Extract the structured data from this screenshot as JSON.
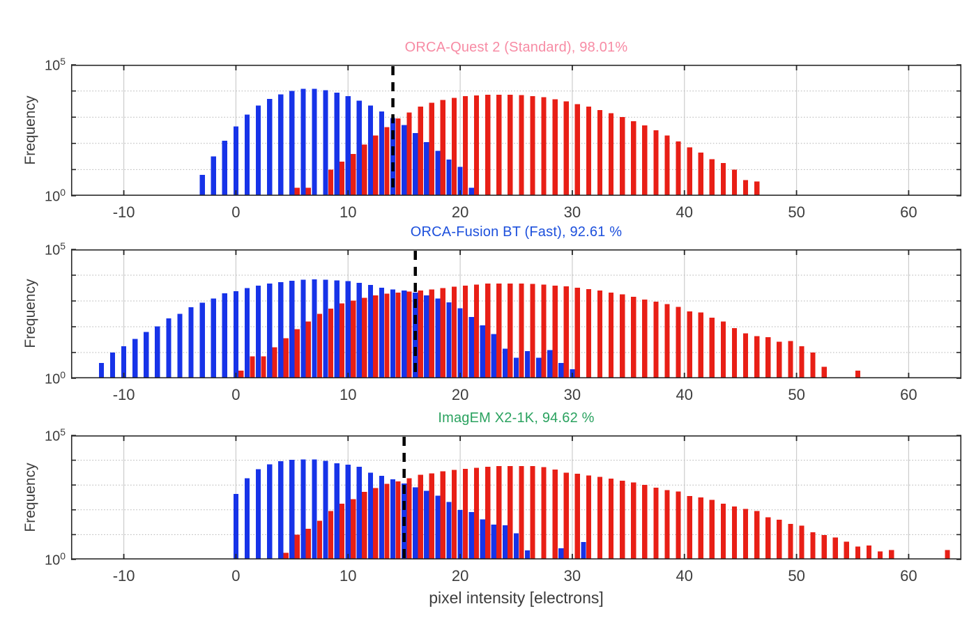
{
  "figure": {
    "xlabel": "pixel intensity [electrons]",
    "background": "#ffffff",
    "axis_color": "#262626",
    "tick_label_color": "#3d3d3d",
    "vgrid_color": "#cccccc",
    "hgrid_color": "#b5b5b5",
    "threshold_color": "#000000",
    "blue_color": "#1733e8",
    "red_color": "#e81f16"
  },
  "chart_data": [
    {
      "type": "bar",
      "title": "ORCA-Quest 2 (Standard), 98.01%",
      "title_color": "#f78ba4",
      "ylabel": "Frequency",
      "xlabel": "",
      "xlim": [
        -14.7,
        64.7
      ],
      "ylim_log10": [
        0,
        5
      ],
      "xticks": [
        -10,
        0,
        10,
        20,
        30,
        40,
        50,
        60
      ],
      "ytick_labels": [
        "10^0",
        "10^5"
      ],
      "grid": "horizontal dotted at each decade, vertical solid at x ticks",
      "threshold_x": 14,
      "series": [
        {
          "name": "blue",
          "color": "#1733e8",
          "x_start": -3,
          "log10_frequency": [
            0.8,
            1.5,
            2.1,
            2.65,
            3.1,
            3.45,
            3.7,
            3.87,
            4.0,
            4.08,
            4.08,
            4.03,
            3.93,
            3.8,
            3.63,
            3.44,
            3.22,
            2.97,
            2.7,
            2.4,
            2.05,
            1.72,
            1.38,
            1.1,
            0.3
          ]
        },
        {
          "name": "red",
          "color": "#e81f16",
          "x_start": 5,
          "log10_frequency": [
            0.3,
            0.3,
            null,
            1.0,
            1.3,
            1.6,
            1.95,
            2.3,
            2.62,
            2.95,
            3.18,
            3.4,
            3.55,
            3.66,
            3.74,
            3.8,
            3.83,
            3.85,
            3.86,
            3.86,
            3.84,
            3.8,
            3.76,
            3.68,
            3.6,
            3.5,
            3.4,
            3.27,
            3.15,
            3.0,
            2.85,
            2.68,
            2.5,
            2.3,
            2.08,
            1.85,
            1.65,
            1.4,
            1.25,
            1.0,
            0.6,
            0.55
          ]
        }
      ]
    },
    {
      "type": "bar",
      "title": "ORCA-Fusion BT (Fast), 92.61 %",
      "title_color": "#1d50dc",
      "ylabel": "Frequency",
      "xlabel": "",
      "xlim": [
        -14.7,
        64.7
      ],
      "ylim_log10": [
        0,
        5
      ],
      "xticks": [
        -10,
        0,
        10,
        20,
        30,
        40,
        50,
        60
      ],
      "ytick_labels": [
        "10^0",
        "10^5"
      ],
      "grid": "horizontal dotted at each decade, vertical solid at x ticks",
      "threshold_x": 16,
      "series": [
        {
          "name": "blue",
          "color": "#1733e8",
          "x_start": -12,
          "log10_frequency": [
            0.6,
            1.0,
            1.25,
            1.53,
            1.8,
            2.02,
            2.33,
            2.5,
            2.76,
            2.93,
            3.1,
            3.3,
            3.38,
            3.5,
            3.6,
            3.68,
            3.73,
            3.79,
            3.83,
            3.84,
            3.83,
            3.8,
            3.77,
            3.7,
            3.62,
            3.52,
            3.45,
            3.4,
            3.33,
            3.22,
            3.1,
            2.95,
            2.72,
            2.38,
            2.05,
            1.72,
            1.15,
            0.8,
            1.05,
            0.8,
            1.1,
            0.6,
            0.35
          ]
        },
        {
          "name": "red",
          "color": "#e81f16",
          "x_start": 0,
          "log10_frequency": [
            0.3,
            0.85,
            0.85,
            1.2,
            1.55,
            1.9,
            2.2,
            2.5,
            2.7,
            2.9,
            3.02,
            3.12,
            3.22,
            3.28,
            3.32,
            3.36,
            3.4,
            3.45,
            3.5,
            3.55,
            3.6,
            3.64,
            3.67,
            3.68,
            3.68,
            3.68,
            3.66,
            3.64,
            3.6,
            3.57,
            3.52,
            3.46,
            3.4,
            3.33,
            3.26,
            3.16,
            3.06,
            2.97,
            2.88,
            2.77,
            2.6,
            2.55,
            2.35,
            2.2,
            1.95,
            1.75,
            1.64,
            1.6,
            1.42,
            1.45,
            1.25,
            1.0,
            0.45,
            null,
            null,
            0.3
          ]
        }
      ]
    },
    {
      "type": "bar",
      "title": "ImagEM X2-1K, 94.62 %",
      "title_color": "#2aa25f",
      "ylabel": "Frequency",
      "xlabel": "pixel intensity [electrons]",
      "xlim": [
        -14.7,
        64.7
      ],
      "ylim_log10": [
        0,
        5
      ],
      "xticks": [
        -10,
        0,
        10,
        20,
        30,
        40,
        50,
        60
      ],
      "ytick_labels": [
        "10^0",
        "10^5"
      ],
      "grid": "horizontal dotted at each decade, vertical solid at x ticks",
      "threshold_x": 15,
      "series": [
        {
          "name": "blue",
          "color": "#1733e8",
          "x_start": 0,
          "log10_frequency": [
            2.64,
            3.27,
            3.64,
            3.84,
            3.96,
            4.02,
            4.03,
            4.03,
            3.97,
            3.88,
            3.82,
            3.73,
            3.5,
            3.37,
            3.23,
            3.06,
            2.91,
            2.76,
            2.57,
            2.32,
            2.0,
            1.91,
            1.61,
            1.41,
            1.38,
            1.06,
            0.36,
            null,
            null,
            0.45,
            null,
            0.7
          ]
        },
        {
          "name": "red",
          "color": "#e81f16",
          "x_start": 4,
          "log10_frequency": [
            0.27,
            1.0,
            1.24,
            1.56,
            1.95,
            2.25,
            2.43,
            2.73,
            2.88,
            3.05,
            3.15,
            3.27,
            3.41,
            3.47,
            3.55,
            3.61,
            3.65,
            3.7,
            3.73,
            3.76,
            3.76,
            3.77,
            3.77,
            3.72,
            3.62,
            3.5,
            3.45,
            3.38,
            3.33,
            3.26,
            3.17,
            3.1,
            3.0,
            2.9,
            2.8,
            2.74,
            2.56,
            2.5,
            2.4,
            2.25,
            2.13,
            2.03,
            1.95,
            1.7,
            1.6,
            1.43,
            1.36,
            1.1,
            0.98,
            0.88,
            0.72,
            0.52,
            0.56,
            0.33,
            0.38,
            null,
            null,
            null,
            null,
            0.38
          ]
        }
      ]
    }
  ]
}
